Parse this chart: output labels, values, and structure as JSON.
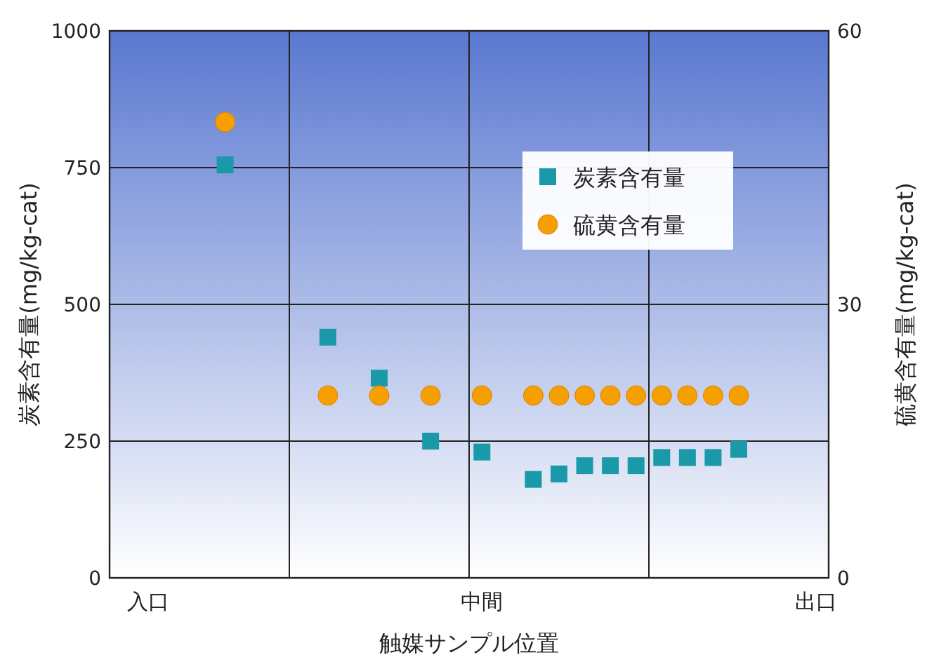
{
  "chart_data": {
    "type": "scatter",
    "xlabel": "触媒サンプル位置",
    "ylabel": "炭素含有量(mg/kg-cat)",
    "y2label": "硫黄含有量(mg/kg-cat)",
    "categories": [
      null,
      "入口",
      null,
      null,
      null,
      null,
      null,
      null,
      null,
      null,
      null,
      null,
      null,
      null,
      "中間",
      null,
      null,
      null,
      null,
      null,
      null,
      null,
      null,
      null,
      null,
      null,
      null,
      "出口"
    ],
    "ylim": [
      0,
      1000
    ],
    "yticks": [
      0,
      250,
      500,
      750,
      1000
    ],
    "y2lim": [
      0,
      60
    ],
    "y2ticks": [
      0,
      30,
      60
    ],
    "grid": true,
    "legend": "top right",
    "series": [
      {
        "name": "炭素含有量",
        "color": "#1a9aa8",
        "marker": "square",
        "values": [
          null,
          null,
          null,
          null,
          755,
          null,
          null,
          null,
          440,
          null,
          365,
          null,
          250,
          null,
          230,
          null,
          180,
          190,
          205,
          205,
          205,
          220,
          220,
          220,
          235,
          null,
          null,
          null
        ]
      },
      {
        "name": "硫黄含有量",
        "color": "#f5a000",
        "marker": "circle",
        "axis": "y2",
        "values": [
          null,
          null,
          null,
          null,
          50,
          null,
          null,
          null,
          20,
          null,
          20,
          null,
          20,
          null,
          20,
          null,
          20,
          20,
          20,
          20,
          20,
          20,
          20,
          20,
          20,
          null,
          null,
          null
        ]
      }
    ]
  }
}
